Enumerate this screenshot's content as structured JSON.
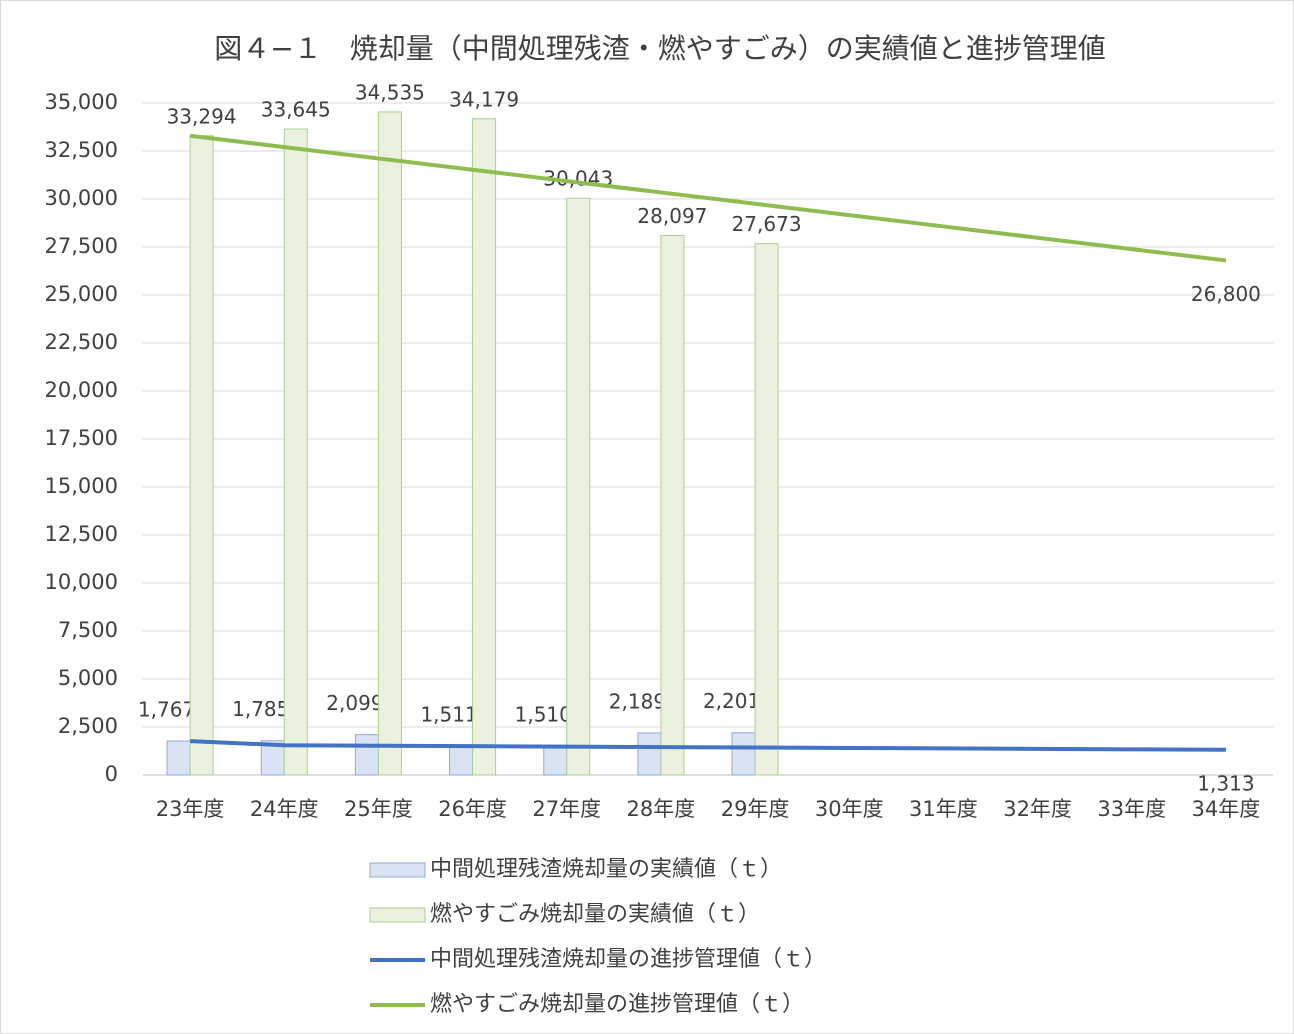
{
  "chart_data": {
    "type": "bar",
    "title": "図４−１　焼却量（中間処理残渣・燃やすごみ）の実績値と進捗管理値",
    "categories": [
      "23年度",
      "24年度",
      "25年度",
      "26年度",
      "27年度",
      "28年度",
      "29年度",
      "30年度",
      "31年度",
      "32年度",
      "33年度",
      "34年度"
    ],
    "series": [
      {
        "name": "中間処理残渣焼却量の実績値（ｔ）",
        "type": "bar",
        "color": "#dae3f3",
        "stroke": "#8faadc",
        "values": [
          1767,
          1785,
          2099,
          1511,
          1510,
          2189,
          2201,
          null,
          null,
          null,
          null,
          null
        ],
        "value_labels": [
          "1,767",
          "1,785",
          "2,099",
          "1,511",
          "1,510",
          "2,189",
          "2,201",
          null,
          null,
          null,
          null,
          null
        ]
      },
      {
        "name": "燃やすごみ焼却量の実績値（ｔ）",
        "type": "bar",
        "color": "#ebf1de",
        "stroke": "#a9d18e",
        "values": [
          33294,
          33645,
          34535,
          34179,
          30043,
          28097,
          27673,
          null,
          null,
          null,
          null,
          null
        ],
        "value_labels": [
          "33,294",
          "33,645",
          "34,535",
          "34,179",
          "30,043",
          "28,097",
          "27,673",
          null,
          null,
          null,
          null,
          null
        ]
      },
      {
        "name": "中間処理残渣焼却量の進捗管理値（ｔ）",
        "type": "line",
        "color": "#4472c4",
        "values": [
          1767,
          1550,
          1526,
          1503,
          1479,
          1455,
          1432,
          1408,
          1384,
          1361,
          1337,
          1313
        ],
        "value_labels": [
          null,
          null,
          null,
          null,
          null,
          null,
          null,
          null,
          null,
          null,
          null,
          "1,313"
        ]
      },
      {
        "name": "燃やすごみ焼却量の進捗管理値（ｔ）",
        "type": "line",
        "color": "#8fbc4f",
        "values": [
          33294,
          32704,
          32113,
          31523,
          30932,
          30342,
          29751,
          29161,
          28571,
          27980,
          27390,
          26800
        ],
        "value_labels": [
          null,
          null,
          null,
          null,
          null,
          null,
          null,
          null,
          null,
          null,
          null,
          "26,800"
        ]
      }
    ],
    "ylim": [
      0,
      35000
    ],
    "yticks": [
      0,
      {
        "value": 2500,
        "label": "2,500"
      },
      {
        "value": 5000,
        "label": "5,000"
      },
      {
        "value": 7500,
        "label": "7,500"
      },
      {
        "value": 10000,
        "label": "10,000"
      },
      {
        "value": 12500,
        "label": "12,500"
      },
      {
        "value": 15000,
        "label": "15,000"
      },
      {
        "value": 17500,
        "label": "17,500"
      },
      {
        "value": 20000,
        "label": "20,000"
      },
      {
        "value": 22500,
        "label": "22,500"
      },
      {
        "value": 25000,
        "label": "25,000"
      },
      {
        "value": 27500,
        "label": "27,500"
      },
      {
        "value": 30000,
        "label": "30,000"
      },
      {
        "value": 32500,
        "label": "32,500"
      },
      {
        "value": 35000,
        "label": "35,000"
      }
    ],
    "grid": true,
    "legend": "bottom"
  }
}
